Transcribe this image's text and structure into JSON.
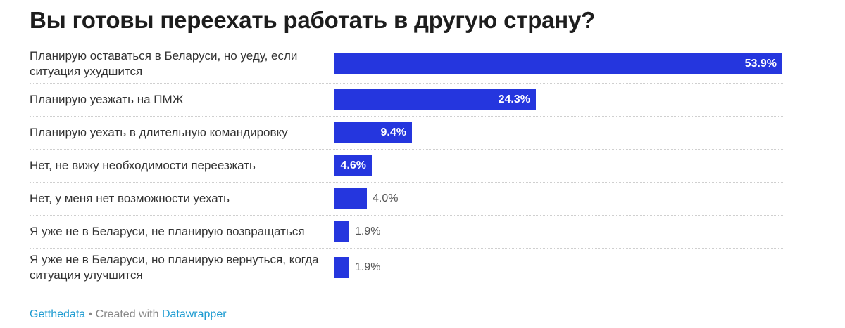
{
  "title": "Вы готовы переехать работать в другую страну?",
  "chart_data": {
    "type": "bar",
    "orientation": "horizontal",
    "categories": [
      "Планирую оставаться в Беларуси, но уеду, если ситуация ухудшится",
      "Планирую уезжать на ПМЖ",
      "Планирую уехать в длительную командировку",
      "Нет, не вижу необходимости переезжать",
      "Нет, у меня нет возможности уехать",
      "Я уже не в Беларуси, не планирую возвращаться",
      "Я уже не в Беларуси, но планирую вернуться, когда ситуация улучшится"
    ],
    "values": [
      53.9,
      24.3,
      9.4,
      4.6,
      4.0,
      1.9,
      1.9
    ],
    "value_labels": [
      "53.9%",
      "24.3%",
      "9.4%",
      "4.6%",
      "4.0%",
      "1.9%",
      "1.9%"
    ],
    "xlim": [
      0,
      53.9
    ],
    "bar_color": "#2536de"
  },
  "footer": {
    "source": "Getthedata",
    "separator": " • Created with ",
    "tool": "Datawrapper"
  }
}
